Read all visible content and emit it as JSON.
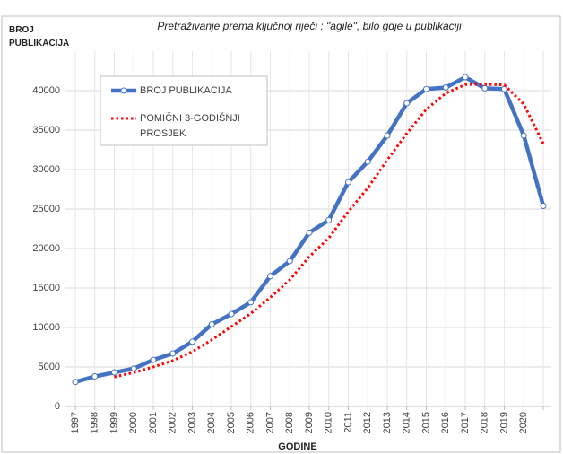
{
  "chart_data": {
    "type": "line",
    "title": "Pretraživanje prema ključnoj riječi : \"agile\", bilo gdje u publikaciji",
    "y_label": "BROJ PUBLIKACIJA",
    "x_label": "GODINE",
    "categories": [
      "1997",
      "1998",
      "1999",
      "2000",
      "2001",
      "2002",
      "2003",
      "2004",
      "2005",
      "2006",
      "2007",
      "2008",
      "2009",
      "2010",
      "2011",
      "2012",
      "2013",
      "2014",
      "2015",
      "2016",
      "2017",
      "2018",
      "2019",
      "2020",
      null
    ],
    "series": [
      {
        "name": "BROJ PUBLIKACIJA",
        "color": "#4472c4",
        "style": "solid-markers",
        "values": [
          3100,
          3800,
          4300,
          4800,
          5900,
          6700,
          8200,
          10400,
          11700,
          13200,
          16500,
          18400,
          22000,
          23600,
          28400,
          31000,
          34300,
          38400,
          40200,
          40400,
          41700,
          40300,
          40200,
          34300,
          25400
        ]
      },
      {
        "name": "POMIČNI 3-GODIŠNJI PROSJEK",
        "color": "#ff0000",
        "style": "dotted",
        "values": [
          null,
          null,
          3733,
          4300,
          5000,
          5800,
          6933,
          8433,
          10100,
          11767,
          13800,
          16033,
          18967,
          21333,
          24667,
          27667,
          31233,
          34567,
          37633,
          39667,
          40767,
          40800,
          40733,
          38267,
          33300
        ]
      }
    ],
    "ylim": [
      0,
      45000
    ],
    "yticks": [
      0,
      5000,
      10000,
      15000,
      20000,
      25000,
      30000,
      35000,
      40000
    ],
    "grid": true
  }
}
